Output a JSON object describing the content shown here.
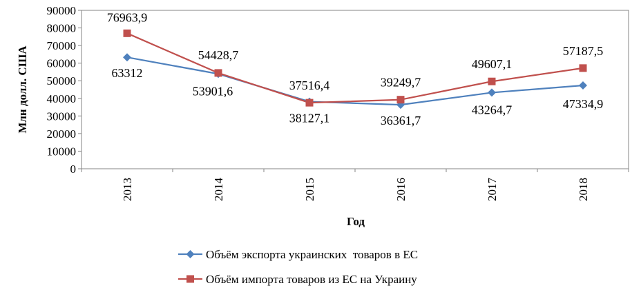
{
  "chart_data": {
    "type": "line",
    "title": "",
    "xlabel": "Год",
    "ylabel": "Млн долл. США",
    "ylim": [
      0,
      90000
    ],
    "y_ticks": [
      "0",
      "10000",
      "20000",
      "30000",
      "40000",
      "50000",
      "60000",
      "70000",
      "80000",
      "90000"
    ],
    "categories": [
      "2013",
      "2014",
      "2015",
      "2016",
      "2017",
      "2018"
    ],
    "grid": false,
    "legend_position": "bottom",
    "series": [
      {
        "name": "Объём экспорта украинских  товаров в ЕС",
        "color": "#4F81BD",
        "marker": "diamond",
        "values": [
          63312,
          53901.6,
          38127.1,
          36361.7,
          43264.7,
          47334.9
        ],
        "labels": [
          "63312",
          "53901,6",
          "38127,1",
          "36361,7",
          "43264,7",
          "47334,9"
        ]
      },
      {
        "name": "Объём импорта товаров из ЕС на Украину",
        "color": "#C0504D",
        "marker": "square",
        "values": [
          76963.9,
          54428.7,
          37516.4,
          39249.7,
          49607.1,
          57187.5
        ],
        "labels": [
          "76963,9",
          "54428,7",
          "37516,4",
          "39249,7",
          "49607,1",
          "57187,5"
        ]
      }
    ]
  }
}
